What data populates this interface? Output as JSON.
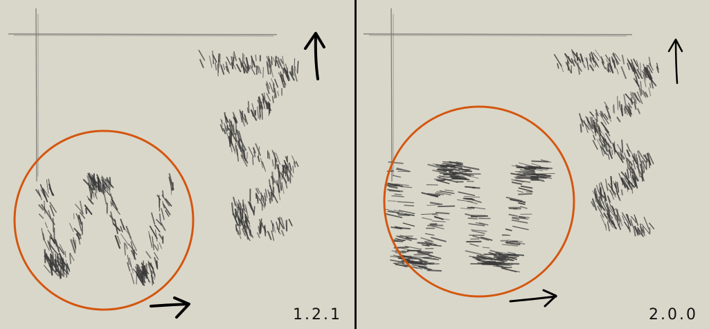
{
  "panels": [
    {
      "id": "left",
      "version_label": "1.2.1",
      "highlight_color": "#d4560f",
      "stroke_color": "#3a3a3a"
    },
    {
      "id": "right",
      "version_label": "2.0.0",
      "highlight_color": "#d4560f",
      "stroke_color": "#3a3a3a"
    }
  ],
  "icons": {
    "up_arrow": "up-arrow-icon",
    "right_arrow": "right-arrow-icon"
  }
}
